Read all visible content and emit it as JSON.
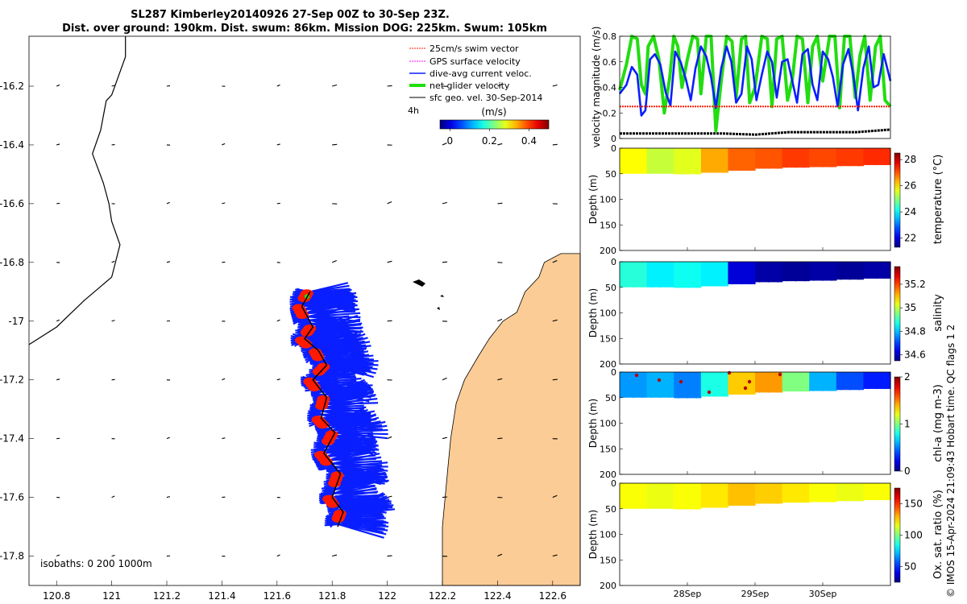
{
  "header": {
    "title_line1": "SL287 Kimberley20140926 27-Sep 00Z to 30-Sep 23Z.",
    "title_line2": "Dist. over ground: 190km. Dist. swum: 86km. Mission DOG: 225km. Swum: 105km"
  },
  "colors": {
    "ocean": "#ffffff",
    "land": "#fbcc96",
    "track_blue": "#0a1fff",
    "swim_red": "#ff1a00",
    "gps_magenta": "#ff00ff",
    "net_green": "#22dd11",
    "black": "#000000"
  },
  "legend": {
    "items": [
      {
        "label": "25cm/s swim vector",
        "color": "#ff1a00"
      },
      {
        "label": "GPS surface velocity",
        "color": "#ff00ff"
      },
      {
        "label": "dive-avg current veloc.",
        "color": "#0a1fff"
      },
      {
        "label": "net glider velocity",
        "color": "#22dd11"
      },
      {
        "label": "sfc geo. vel. 30-Sep-2014",
        "color": "#000000"
      }
    ],
    "time_label": "4h",
    "colorbar_title": "(m/s)",
    "colorbar_ticks": [
      "0",
      "0.2",
      "0.4"
    ],
    "colorbar_tick_values": [
      0,
      0.2,
      0.4
    ],
    "colorbar_range": [
      -0.05,
      0.5
    ]
  },
  "chart_data": [
    {
      "type": "map",
      "name": "glider track map",
      "xlim": [
        120.7,
        122.7
      ],
      "ylim": [
        -17.9,
        -16.03
      ],
      "x_ticks": [
        120.8,
        121,
        121.2,
        121.4,
        121.6,
        121.8,
        122,
        122.2,
        122.4,
        122.6
      ],
      "x_tick_labels": [
        "120.8",
        "121",
        "121.2",
        "121.4",
        "121.6",
        "121.8",
        "122",
        "122.2",
        "122.4",
        "122.6"
      ],
      "y_ticks": [
        -16.2,
        -16.4,
        -16.6,
        -16.8,
        -17,
        -17.2,
        -17.4,
        -17.6,
        -17.8
      ],
      "y_tick_labels": [
        "-16.2",
        "-16.4",
        "-16.6",
        "-16.8",
        "-17",
        "-17.2",
        "-17.4",
        "-17.6",
        "-17.8"
      ],
      "isobath_label": "isobaths: 0    200   1000m",
      "isobath_line": [
        [
          121.05,
          -16.03
        ],
        [
          121.05,
          -16.1
        ],
        [
          121.0,
          -16.23
        ],
        [
          120.98,
          -16.25
        ],
        [
          120.96,
          -16.35
        ],
        [
          120.93,
          -16.43
        ],
        [
          120.97,
          -16.53
        ],
        [
          120.99,
          -16.6
        ],
        [
          121.0,
          -16.66
        ],
        [
          121.03,
          -16.74
        ],
        [
          121.0,
          -16.85
        ],
        [
          120.9,
          -16.93
        ],
        [
          120.8,
          -17.02
        ],
        [
          120.7,
          -17.08
        ]
      ],
      "coast_line": [
        [
          122.7,
          -16.77
        ],
        [
          122.63,
          -16.77
        ],
        [
          122.57,
          -16.8
        ],
        [
          122.55,
          -16.85
        ],
        [
          122.5,
          -16.9
        ],
        [
          122.47,
          -16.97
        ],
        [
          122.42,
          -17.0
        ],
        [
          122.37,
          -17.06
        ],
        [
          122.33,
          -17.12
        ],
        [
          122.28,
          -17.2
        ],
        [
          122.25,
          -17.28
        ],
        [
          122.23,
          -17.4
        ],
        [
          122.22,
          -17.5
        ],
        [
          122.21,
          -17.6
        ],
        [
          122.2,
          -17.7
        ],
        [
          122.2,
          -17.9
        ]
      ],
      "glider_track": [
        [
          121.72,
          -16.9
        ],
        [
          121.69,
          -16.95
        ],
        [
          121.73,
          -17.02
        ],
        [
          121.7,
          -17.06
        ],
        [
          121.75,
          -17.1
        ],
        [
          121.78,
          -17.15
        ],
        [
          121.73,
          -17.2
        ],
        [
          121.78,
          -17.26
        ],
        [
          121.76,
          -17.33
        ],
        [
          121.81,
          -17.38
        ],
        [
          121.77,
          -17.45
        ],
        [
          121.83,
          -17.52
        ],
        [
          121.8,
          -17.6
        ],
        [
          121.84,
          -17.65
        ],
        [
          121.82,
          -17.7
        ]
      ],
      "geo_vector_cols": [
        120.8,
        121,
        121.2,
        121.4,
        121.6,
        121.8,
        122,
        122.2,
        122.4,
        122.6
      ],
      "geo_vector_rows": [
        -16.2,
        -16.4,
        -16.6,
        -16.8,
        -17,
        -17.2,
        -17.4,
        -17.6,
        -17.8
      ]
    },
    {
      "type": "line",
      "name": "velocity magnitude",
      "ylabel": "velocity magnitude (m/s)",
      "ylim": [
        0,
        0.8
      ],
      "y_ticks": [
        0,
        0.2,
        0.4,
        0.6,
        0.8
      ],
      "y_tick_labels": [
        "0",
        "0.2",
        "0.4",
        "0.6",
        "0.8"
      ],
      "xlim": [
        27,
        31
      ],
      "series": [
        {
          "name": "net glider velocity",
          "color": "#22dd11",
          "x": [
            27.0,
            27.1,
            27.18,
            27.26,
            27.32,
            27.38,
            27.42,
            27.5,
            27.58,
            27.66,
            27.74,
            27.8,
            27.86,
            27.92,
            28.0,
            28.08,
            28.15,
            28.2,
            28.28,
            28.35,
            28.42,
            28.5,
            28.58,
            28.66,
            28.72,
            28.8,
            28.86,
            28.92,
            29.0,
            29.1,
            29.18,
            29.25,
            29.32,
            29.4,
            29.48,
            29.55,
            29.62,
            29.7,
            29.78,
            29.85,
            29.92,
            30.0,
            30.1,
            30.18,
            30.25,
            30.32,
            30.4,
            30.48,
            30.55,
            30.62,
            30.7,
            30.78,
            30.85,
            30.92,
            31.0
          ],
          "values": [
            0.38,
            0.58,
            0.8,
            0.78,
            0.42,
            0.35,
            0.72,
            0.8,
            0.62,
            0.2,
            0.48,
            0.8,
            0.72,
            0.4,
            0.62,
            0.8,
            0.78,
            0.35,
            0.8,
            0.82,
            0.06,
            0.45,
            0.8,
            0.76,
            0.32,
            0.78,
            0.8,
            0.28,
            0.4,
            0.8,
            0.78,
            0.25,
            0.78,
            0.8,
            0.3,
            0.46,
            0.8,
            0.78,
            0.28,
            0.72,
            0.8,
            0.45,
            0.8,
            0.82,
            0.24,
            0.8,
            0.8,
            0.32,
            0.65,
            0.8,
            0.3,
            0.72,
            0.8,
            0.3,
            0.25
          ]
        },
        {
          "name": "dive-avg current veloc.",
          "color": "#0a1fff",
          "x": [
            27.0,
            27.1,
            27.18,
            27.26,
            27.32,
            27.38,
            27.45,
            27.52,
            27.6,
            27.68,
            27.75,
            27.82,
            27.9,
            27.98,
            28.05,
            28.12,
            28.2,
            28.28,
            28.35,
            28.42,
            28.5,
            28.58,
            28.65,
            28.72,
            28.8,
            28.88,
            28.95,
            29.02,
            29.1,
            29.18,
            29.25,
            29.32,
            29.4,
            29.48,
            29.55,
            29.62,
            29.7,
            29.78,
            29.85,
            29.92,
            30.0,
            30.08,
            30.15,
            30.22,
            30.3,
            30.38,
            30.45,
            30.52,
            30.6,
            30.68,
            30.75,
            30.82,
            30.9,
            31.0
          ],
          "values": [
            0.35,
            0.42,
            0.56,
            0.5,
            0.18,
            0.22,
            0.62,
            0.66,
            0.58,
            0.36,
            0.26,
            0.68,
            0.6,
            0.46,
            0.3,
            0.55,
            0.72,
            0.64,
            0.48,
            0.24,
            0.55,
            0.72,
            0.6,
            0.28,
            0.35,
            0.72,
            0.62,
            0.3,
            0.5,
            0.68,
            0.6,
            0.32,
            0.6,
            0.62,
            0.45,
            0.28,
            0.66,
            0.7,
            0.42,
            0.3,
            0.68,
            0.62,
            0.48,
            0.25,
            0.58,
            0.7,
            0.5,
            0.22,
            0.55,
            0.72,
            0.4,
            0.42,
            0.66,
            0.45
          ]
        },
        {
          "name": "25cm/s swim vector",
          "color": "#ff1a00",
          "x": [
            27.0,
            31.0
          ],
          "values": [
            0.25,
            0.25
          ]
        },
        {
          "name": "sfc geo. vel.",
          "color": "#000000",
          "x": [
            27.0,
            27.5,
            28.0,
            28.5,
            29.0,
            29.5,
            30.0,
            30.5,
            31.0
          ],
          "values": [
            0.04,
            0.04,
            0.04,
            0.04,
            0.03,
            0.05,
            0.05,
            0.05,
            0.07
          ]
        }
      ]
    },
    {
      "type": "heatmap",
      "name": "temperature section",
      "ylabel": "Depth (m)",
      "ylim": [
        0,
        200
      ],
      "y_ticks": [
        0,
        50,
        100,
        150,
        200
      ],
      "colorbar_label": "temperature (°C)",
      "colorbar_ticks": [
        "22",
        "24",
        "26",
        "28"
      ],
      "colorbar_tick_values": [
        22,
        24,
        26,
        28
      ],
      "crange": [
        21.3,
        28.5
      ],
      "depth_profile": [
        50,
        50,
        51,
        48,
        44,
        40,
        38,
        37,
        35,
        33
      ],
      "surface_values": [
        25.8,
        25.4,
        25.6,
        26.4,
        26.9,
        27.0,
        27.2,
        27.1,
        27.2,
        27.3
      ]
    },
    {
      "type": "heatmap",
      "name": "salinity section",
      "ylabel": "Depth (m)",
      "ylim": [
        0,
        200
      ],
      "y_ticks": [
        0,
        50,
        100,
        150,
        200
      ],
      "colorbar_label": "salinity",
      "colorbar_ticks": [
        "34.6",
        "34.8",
        "35",
        "35.2"
      ],
      "colorbar_tick_values": [
        34.6,
        34.8,
        35,
        35.2
      ],
      "crange": [
        34.55,
        35.35
      ],
      "depth_profile": [
        50,
        50,
        51,
        48,
        44,
        40,
        38,
        37,
        35,
        33
      ],
      "surface_values": [
        34.88,
        34.84,
        34.86,
        34.84,
        34.62,
        34.58,
        34.57,
        34.58,
        34.57,
        34.58
      ]
    },
    {
      "type": "heatmap",
      "name": "chlorophyll section",
      "ylabel": "Depth (m)",
      "ylim": [
        0,
        200
      ],
      "y_ticks": [
        0,
        50,
        100,
        150,
        200
      ],
      "colorbar_label": "chl-a (mg m-3)",
      "colorbar_ticks": [
        "0",
        "1",
        "2"
      ],
      "colorbar_tick_values": [
        0,
        1,
        2
      ],
      "crange": [
        0,
        2
      ],
      "depth_profile": [
        50,
        50,
        51,
        48,
        44,
        40,
        38,
        37,
        35,
        33
      ],
      "surface_values": [
        0.55,
        0.6,
        0.5,
        0.8,
        1.35,
        1.45,
        1.0,
        0.6,
        0.4,
        0.3
      ]
    },
    {
      "type": "heatmap",
      "name": "oxygen saturation section",
      "ylabel": "Depth (m)",
      "ylim": [
        0,
        200
      ],
      "y_ticks": [
        0,
        50,
        100,
        150,
        200
      ],
      "colorbar_label": "Ox. sat. ratio (%)",
      "colorbar_ticks": [
        "50",
        "100",
        "150"
      ],
      "colorbar_tick_values": [
        50,
        100,
        150
      ],
      "crange": [
        25,
        175
      ],
      "depth_profile": [
        50,
        50,
        51,
        48,
        44,
        40,
        38,
        37,
        35,
        33
      ],
      "surface_values": [
        118,
        116,
        118,
        122,
        128,
        126,
        122,
        118,
        116,
        118
      ]
    }
  ],
  "time_axis": {
    "tick_labels": [
      "28Sep",
      "29Sep",
      "30Sep"
    ],
    "tick_values": [
      28,
      29,
      30
    ]
  },
  "footer": {
    "credit": "© IMOS 15-Apr-2024 21:09:43 Hobart time. QC flags 1  2"
  }
}
